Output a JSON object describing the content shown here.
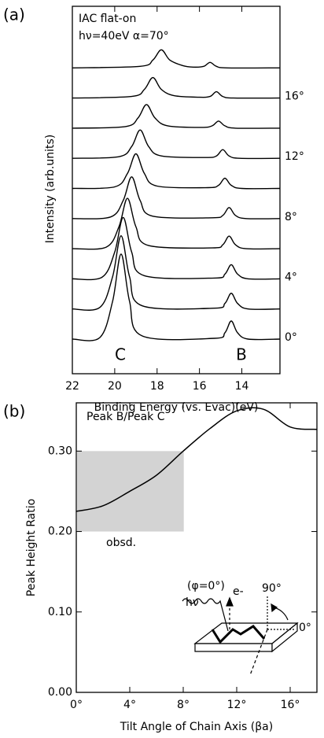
{
  "chart_data": [
    {
      "type": "spectra",
      "panel_label": "(a)",
      "annotations": [
        "IAC flat-on",
        "hν=40eV  α=70°",
        "C",
        "B"
      ],
      "x_label": "Binding Energy (vs. Evac)(eV)",
      "y_label": "Intensity (arb.units)",
      "xlim": [
        22,
        12.2
      ],
      "xticks": [
        22,
        20,
        18,
        16,
        14
      ],
      "series": [
        {
          "name": "0°",
          "color": "#000000",
          "x": [
            22,
            20.7,
            20.1,
            19.7,
            19.3,
            18.7,
            15.3,
            14.8,
            14.5,
            14.2,
            13.7,
            12.2
          ],
          "values": [
            0.02,
            0.04,
            0.5,
            1.1,
            0.5,
            0.06,
            0.03,
            0.1,
            0.25,
            0.1,
            0.02,
            0.02
          ]
        },
        {
          "name": null,
          "color": "#000000",
          "x": [
            22,
            20.7,
            20.1,
            19.7,
            19.3,
            18.7,
            15.3,
            14.8,
            14.5,
            14.2,
            13.7,
            12.2
          ],
          "values": [
            0.02,
            0.04,
            0.43,
            0.95,
            0.43,
            0.06,
            0.03,
            0.09,
            0.22,
            0.09,
            0.02,
            0.02
          ]
        },
        {
          "name": "4°",
          "color": "#000000",
          "x": [
            22,
            20.6,
            20.0,
            19.6,
            19.2,
            18.6,
            15.3,
            14.8,
            14.5,
            14.2,
            13.7,
            12.2
          ],
          "values": [
            0.02,
            0.04,
            0.36,
            0.8,
            0.36,
            0.06,
            0.03,
            0.08,
            0.2,
            0.08,
            0.02,
            0.02
          ]
        },
        {
          "name": null,
          "color": "#000000",
          "x": [
            22,
            20.4,
            19.8,
            19.4,
            19.0,
            18.4,
            15.4,
            14.9,
            14.6,
            14.3,
            13.8,
            12.2
          ],
          "values": [
            0.02,
            0.04,
            0.3,
            0.66,
            0.3,
            0.06,
            0.03,
            0.07,
            0.18,
            0.07,
            0.02,
            0.02
          ]
        },
        {
          "name": "8°",
          "color": "#000000",
          "x": [
            22,
            20.2,
            19.6,
            19.2,
            18.8,
            18.2,
            15.4,
            14.9,
            14.6,
            14.3,
            13.8,
            12.2
          ],
          "values": [
            0.02,
            0.04,
            0.25,
            0.55,
            0.25,
            0.05,
            0.03,
            0.06,
            0.16,
            0.06,
            0.02,
            0.02
          ]
        },
        {
          "name": null,
          "color": "#000000",
          "x": [
            22,
            20.0,
            19.4,
            19.0,
            18.6,
            18.0,
            15.6,
            15.1,
            14.8,
            14.5,
            14.0,
            12.2
          ],
          "values": [
            0.02,
            0.04,
            0.21,
            0.46,
            0.21,
            0.05,
            0.03,
            0.06,
            0.15,
            0.06,
            0.02,
            0.02
          ]
        },
        {
          "name": "12°",
          "color": "#000000",
          "x": [
            22,
            19.8,
            19.2,
            18.8,
            18.4,
            17.8,
            15.7,
            15.2,
            14.9,
            14.6,
            14.1,
            12.2
          ],
          "values": [
            0.02,
            0.04,
            0.17,
            0.38,
            0.17,
            0.05,
            0.03,
            0.05,
            0.13,
            0.05,
            0.02,
            0.02
          ]
        },
        {
          "name": null,
          "color": "#000000",
          "x": [
            22,
            19.5,
            18.9,
            18.5,
            18.1,
            17.5,
            15.9,
            15.4,
            15.1,
            14.8,
            14.3,
            12.2
          ],
          "values": [
            0.02,
            0.04,
            0.15,
            0.32,
            0.15,
            0.05,
            0.03,
            0.05,
            0.11,
            0.05,
            0.02,
            0.02
          ]
        },
        {
          "name": "16°",
          "color": "#000000",
          "x": [
            22,
            19.2,
            18.6,
            18.2,
            17.8,
            17.2,
            16.0,
            15.5,
            15.2,
            14.9,
            14.4,
            12.2
          ],
          "values": [
            0.02,
            0.04,
            0.13,
            0.28,
            0.13,
            0.05,
            0.03,
            0.04,
            0.1,
            0.04,
            0.02,
            0.02
          ]
        },
        {
          "name": null,
          "color": "#000000",
          "x": [
            22,
            18.8,
            18.2,
            17.8,
            17.4,
            16.8,
            16.3,
            15.8,
            15.5,
            15.2,
            14.7,
            12.2
          ],
          "values": [
            0.02,
            0.04,
            0.12,
            0.25,
            0.12,
            0.05,
            0.03,
            0.04,
            0.09,
            0.04,
            0.02,
            0.02
          ]
        }
      ]
    },
    {
      "type": "line",
      "panel_label": "(b)",
      "annotations": [
        "Peak B/Peak C",
        "obsd.",
        "(φ=0°)",
        "hν",
        "e-",
        "90°",
        "0°"
      ],
      "x_label": "Tilt Angle of Chain Axis (βa)",
      "y_label": "Peak Height Ratio",
      "xlim": [
        0,
        18
      ],
      "ylim": [
        0,
        0.36
      ],
      "xticks": [
        {
          "value": 0,
          "label": "0°"
        },
        {
          "value": 4,
          "label": "4°"
        },
        {
          "value": 8,
          "label": "8°"
        },
        {
          "value": 12,
          "label": "12°"
        },
        {
          "value": 16,
          "label": "16°"
        }
      ],
      "yticks": [
        {
          "value": 0,
          "label": "0.00"
        },
        {
          "value": 0.1,
          "label": "0.10"
        },
        {
          "value": 0.2,
          "label": "0.20"
        },
        {
          "value": 0.3,
          "label": "0.30"
        }
      ],
      "shaded_region": {
        "xlim": [
          0,
          8
        ],
        "ylim": [
          0.2,
          0.3
        ],
        "color": "#d3d3d3"
      },
      "color": "#000000",
      "x": [
        0,
        2,
        4,
        6,
        8,
        10,
        12,
        14,
        16,
        18
      ],
      "values": [
        0.225,
        0.232,
        0.25,
        0.27,
        0.3,
        0.328,
        0.35,
        0.352,
        0.33,
        0.327
      ]
    }
  ]
}
